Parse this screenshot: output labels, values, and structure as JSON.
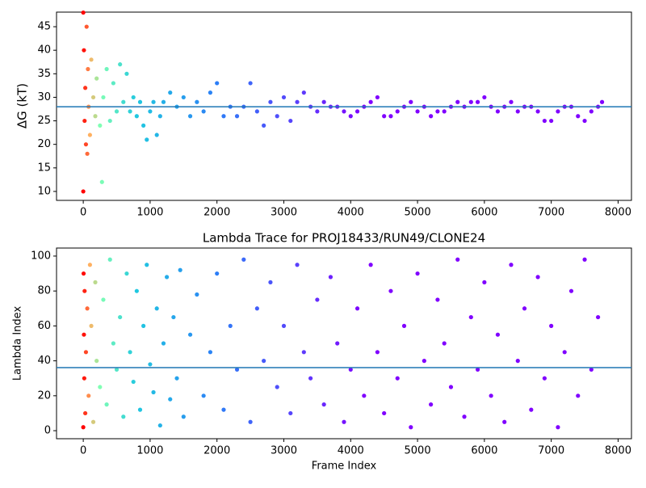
{
  "chart_data": [
    {
      "type": "scatter",
      "ylabel": "ΔG (kT)",
      "x": [
        0,
        0,
        10,
        20,
        30,
        40,
        50,
        60,
        70,
        80,
        100,
        120,
        150,
        180,
        200,
        250,
        280,
        300,
        350,
        400,
        450,
        500,
        550,
        600,
        650,
        700,
        750,
        800,
        850,
        900,
        950,
        1000,
        1050,
        1100,
        1150,
        1200,
        1300,
        1400,
        1500,
        1600,
        1700,
        1800,
        1900,
        2000,
        2100,
        2200,
        2300,
        2400,
        2500,
        2600,
        2700,
        2800,
        2900,
        3000,
        3100,
        3200,
        3300,
        3400,
        3500,
        3600,
        3700,
        3800,
        3900,
        4000,
        4100,
        4200,
        4300,
        4400,
        4500,
        4600,
        4700,
        4800,
        4900,
        5000,
        5100,
        5200,
        5300,
        5400,
        5500,
        5600,
        5700,
        5800,
        5900,
        6000,
        6100,
        6200,
        6300,
        6400,
        6500,
        6600,
        6700,
        6800,
        6900,
        7000,
        7100,
        7200,
        7300,
        7400,
        7500,
        7600,
        7700,
        7760
      ],
      "y": [
        10,
        48,
        40,
        25,
        32,
        20,
        45,
        18,
        36,
        28,
        22,
        38,
        30,
        26,
        34,
        24,
        12,
        30,
        36,
        25,
        33,
        27,
        37,
        29,
        35,
        27,
        30,
        26,
        29,
        24,
        21,
        27,
        29,
        22,
        26,
        29,
        31,
        28,
        30,
        26,
        29,
        27,
        31,
        33,
        26,
        28,
        26,
        28,
        33,
        27,
        24,
        29,
        26,
        30,
        25,
        29,
        31,
        28,
        27,
        29,
        28,
        28,
        27,
        26,
        27,
        28,
        29,
        30,
        26,
        26,
        27,
        28,
        29,
        27,
        28,
        26,
        27,
        27,
        28,
        29,
        28,
        29,
        29,
        30,
        28,
        27,
        28,
        29,
        27,
        28,
        28,
        27,
        25,
        25,
        27,
        28,
        28,
        26,
        25,
        27,
        28,
        29
      ],
      "hline": 28.0,
      "xlim": [
        -400,
        8200
      ],
      "xticks": [
        0,
        1000,
        2000,
        3000,
        4000,
        5000,
        6000,
        7000,
        8000
      ],
      "ylim": [
        8.1,
        48.1
      ],
      "yticks": [
        10,
        15,
        20,
        25,
        30,
        35,
        40,
        45
      ],
      "hline_color": "#1f77b4",
      "color_stops": [
        {
          "x": 0,
          "color": "#ff0000"
        },
        {
          "x": 100,
          "color": "#ffb060"
        },
        {
          "x": 250,
          "color": "#80ffb4"
        },
        {
          "x": 800,
          "color": "#20c8e0"
        },
        {
          "x": 2000,
          "color": "#2c7ef7"
        },
        {
          "x": 3200,
          "color": "#5a40fc"
        },
        {
          "x": 4200,
          "color": "#8000ff"
        }
      ]
    },
    {
      "type": "scatter",
      "title": "Lambda Trace for PROJ18433/RUN49/CLONE24",
      "xlabel": "Frame Index",
      "ylabel": "Lambda Index",
      "x": [
        0,
        5,
        10,
        15,
        20,
        30,
        40,
        60,
        80,
        100,
        120,
        150,
        180,
        200,
        250,
        300,
        350,
        400,
        450,
        500,
        550,
        600,
        650,
        700,
        750,
        800,
        850,
        900,
        950,
        1000,
        1050,
        1100,
        1150,
        1200,
        1250,
        1300,
        1350,
        1400,
        1450,
        1500,
        1600,
        1700,
        1800,
        1900,
        2000,
        2100,
        2200,
        2300,
        2400,
        2500,
        2600,
        2700,
        2800,
        2900,
        3000,
        3100,
        3200,
        3300,
        3400,
        3500,
        3600,
        3700,
        3800,
        3900,
        4000,
        4100,
        4200,
        4300,
        4400,
        4500,
        4600,
        4700,
        4800,
        4900,
        5000,
        5100,
        5200,
        5300,
        5400,
        5500,
        5600,
        5700,
        5800,
        5900,
        6000,
        6100,
        6200,
        6300,
        6400,
        6500,
        6600,
        6700,
        6800,
        6900,
        7000,
        7100,
        7200,
        7300,
        7400,
        7500,
        7600,
        7700
      ],
      "y": [
        2,
        90,
        55,
        30,
        80,
        10,
        45,
        70,
        20,
        95,
        60,
        5,
        85,
        40,
        25,
        75,
        15,
        98,
        50,
        35,
        65,
        8,
        90,
        45,
        28,
        80,
        12,
        60,
        95,
        38,
        22,
        70,
        3,
        50,
        88,
        18,
        65,
        30,
        92,
        8,
        55,
        78,
        20,
        45,
        90,
        12,
        60,
        35,
        98,
        5,
        70,
        40,
        85,
        25,
        60,
        10,
        95,
        45,
        30,
        75,
        15,
        88,
        50,
        5,
        35,
        70,
        20,
        95,
        45,
        10,
        80,
        30,
        60,
        2,
        90,
        40,
        15,
        75,
        50,
        25,
        98,
        8,
        65,
        35,
        85,
        20,
        55,
        5,
        95,
        40,
        70,
        12,
        88,
        30,
        60,
        2,
        45,
        80,
        20,
        98,
        35,
        65
      ],
      "hline": 36.1,
      "xlim": [
        -400,
        8200
      ],
      "xticks": [
        0,
        1000,
        2000,
        3000,
        4000,
        5000,
        6000,
        7000,
        8000
      ],
      "ylim": [
        -4.6,
        104.6
      ],
      "yticks": [
        0,
        20,
        40,
        60,
        80,
        100
      ],
      "hline_color": "#1f77b4",
      "color_stops": [
        {
          "x": 0,
          "color": "#ff0000"
        },
        {
          "x": 100,
          "color": "#ffb060"
        },
        {
          "x": 250,
          "color": "#80ffb4"
        },
        {
          "x": 800,
          "color": "#20c8e0"
        },
        {
          "x": 2000,
          "color": "#2c7ef7"
        },
        {
          "x": 3200,
          "color": "#5a40fc"
        },
        {
          "x": 4200,
          "color": "#8000ff"
        }
      ]
    }
  ]
}
